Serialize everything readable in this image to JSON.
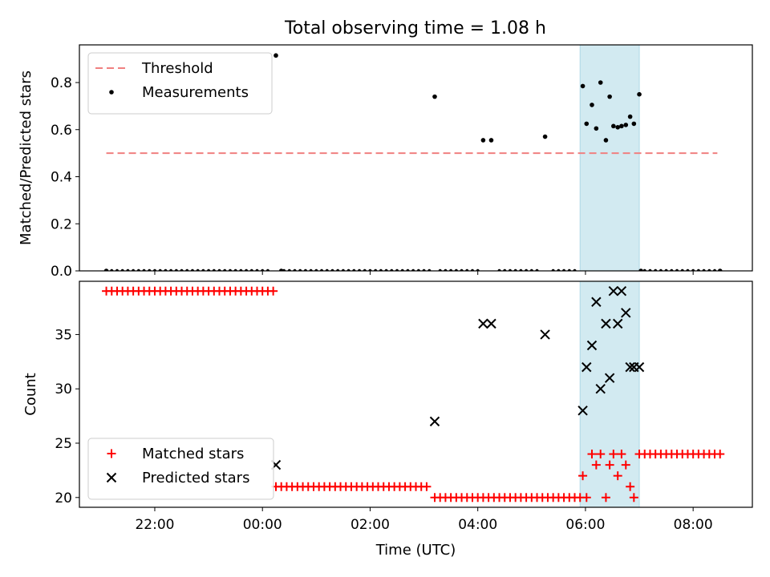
{
  "title": "Total observing time = 1.08 h",
  "shade_color": "#add8e6",
  "chart_data": [
    {
      "type": "scatter",
      "panel": "top",
      "ylabel": "Matched/Predicted stars",
      "xlabel": "",
      "x_unit": "hours UTC (values past 24 are the following day)",
      "xlim": [
        20.6,
        33.1
      ],
      "ylim": [
        0.0,
        0.96
      ],
      "yticks": [
        0.0,
        0.2,
        0.4,
        0.6,
        0.8
      ],
      "ytick_labels": [
        "0.0",
        "0.2",
        "0.4",
        "0.6",
        "0.8"
      ],
      "xticks": [
        22,
        24,
        26,
        28,
        30,
        32
      ],
      "xtick_labels": [
        "22:00",
        "00:00",
        "02:00",
        "04:00",
        "06:00",
        "08:00"
      ],
      "highlight_span": [
        29.9,
        31.0
      ],
      "legend": {
        "location": "upper-left"
      },
      "threshold": {
        "name": "Threshold",
        "value": 0.5,
        "x": [
          21.1,
          32.45
        ],
        "color": "#f08080"
      },
      "series": [
        {
          "name": "Measurements",
          "marker": "dot",
          "color": "#000000",
          "x": [
            21.1,
            24.25,
            24.35,
            27.2,
            28.1,
            28.25,
            29.25,
            29.95,
            30.02,
            30.12,
            30.2,
            30.28,
            30.38,
            30.45,
            30.52,
            30.6,
            30.67,
            30.75,
            30.83,
            30.9,
            31.0,
            31.03,
            32.5
          ],
          "y": [
            0.0,
            0.915,
            0.0,
            0.74,
            0.555,
            0.555,
            0.57,
            0.785,
            0.625,
            0.705,
            0.605,
            0.8,
            0.555,
            0.74,
            0.615,
            0.61,
            0.615,
            0.62,
            0.655,
            0.625,
            0.75,
            0.0,
            0.0
          ]
        }
      ]
    },
    {
      "type": "scatter",
      "panel": "bottom",
      "ylabel": "Count",
      "xlabel": "Time (UTC)",
      "x_unit": "hours UTC (values past 24 are the following day)",
      "xlim": [
        20.6,
        33.1
      ],
      "ylim": [
        19.1,
        39.9
      ],
      "yticks": [
        20,
        25,
        30,
        35
      ],
      "ytick_labels": [
        "20",
        "25",
        "30",
        "35"
      ],
      "xticks": [
        22,
        24,
        26,
        28,
        30,
        32
      ],
      "xtick_labels": [
        "22:00",
        "00:00",
        "02:00",
        "04:00",
        "06:00",
        "08:00"
      ],
      "highlight_span": [
        29.9,
        31.0
      ],
      "legend": {
        "location": "lower-left"
      },
      "series": [
        {
          "name": "Matched stars",
          "marker": "plus",
          "color": "#ff0000",
          "segments": [
            {
              "x_start": 21.1,
              "x_end": 24.2,
              "y": 39
            },
            {
              "x_start": 24.25,
              "x_end": 27.1,
              "y": 21
            },
            {
              "x_start": 27.2,
              "x_end": 29.9,
              "y": 20
            },
            {
              "x_start": 31.0,
              "x_end": 32.55,
              "y": 24
            }
          ],
          "x": [
            29.95,
            30.02,
            30.12,
            30.2,
            30.28,
            30.38,
            30.45,
            30.52,
            30.6,
            30.67,
            30.75,
            30.83,
            30.9
          ],
          "y": [
            22,
            20,
            24,
            23,
            24,
            20,
            23,
            24,
            22,
            24,
            23,
            21,
            20
          ]
        },
        {
          "name": "Predicted stars",
          "marker": "x",
          "color": "#000000",
          "x": [
            24.25,
            27.2,
            28.1,
            28.25,
            29.25,
            29.95,
            30.02,
            30.12,
            30.2,
            30.28,
            30.38,
            30.45,
            30.52,
            30.6,
            30.67,
            30.75,
            30.83,
            30.9,
            31.0
          ],
          "y": [
            23,
            27,
            36,
            36,
            35,
            28,
            32,
            34,
            38,
            30,
            36,
            31,
            39,
            36,
            39,
            37,
            32,
            32,
            32
          ]
        }
      ]
    }
  ]
}
